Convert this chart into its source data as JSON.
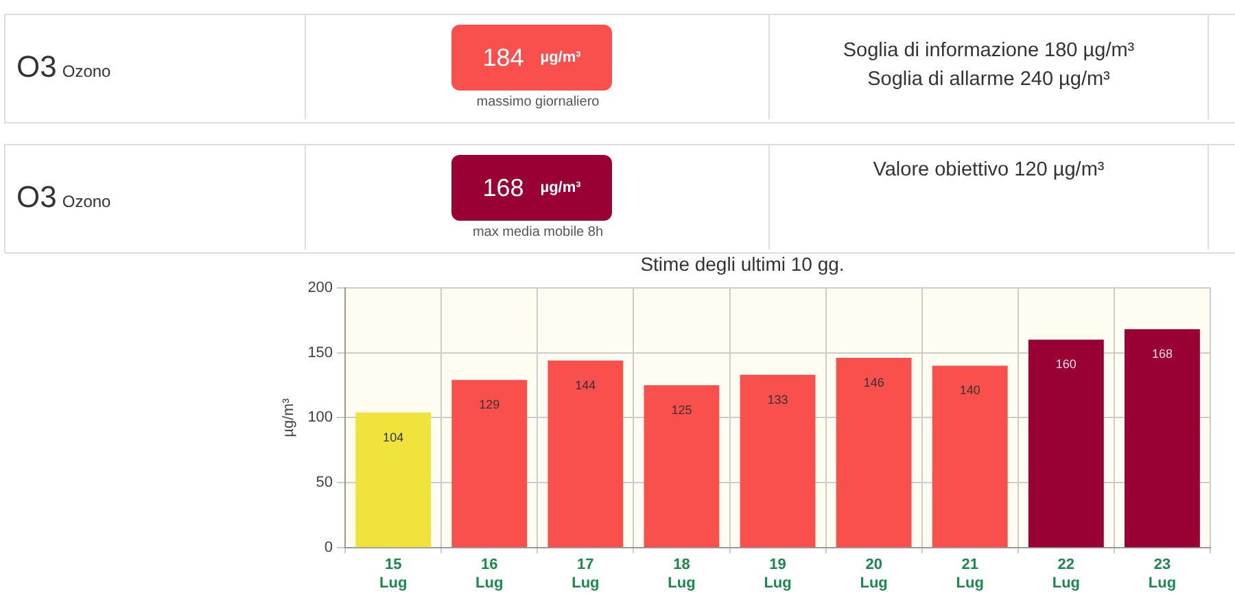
{
  "chart_data": [
    {
      "type": "other",
      "color": "#f9504e",
      "annotations": [
        "O3",
        "Ozono",
        "184",
        "µg/m³",
        "massimo giornaliero",
        "Soglia di informazione 180 µg/m³",
        "Soglia di allarme 240 µg/m³"
      ]
    },
    {
      "type": "other",
      "color": "#990033",
      "annotations": [
        "O3",
        "Ozono",
        "168",
        "µg/m³",
        "max media mobile 8h",
        "Valore obiettivo 120 µg/m³"
      ]
    },
    {
      "type": "bar",
      "title": "Stime degli ultimi 10 gg.",
      "ylabel": "µg/m³",
      "categories": [
        "15 Lug",
        "16 Lug",
        "17 Lug",
        "18 Lug",
        "19 Lug",
        "20 Lug",
        "21 Lug",
        "22 Lug",
        "23 Lug"
      ],
      "values": [
        104,
        129,
        144,
        125,
        133,
        146,
        140,
        160,
        168
      ],
      "colors": [
        "#f0e43c",
        "#f9504e",
        "#f9504e",
        "#f9504e",
        "#f9504e",
        "#f9504e",
        "#f9504e",
        "#990033",
        "#990033"
      ],
      "ylim": [
        0,
        200
      ],
      "yticks": [
        0,
        50,
        100,
        150,
        200
      ],
      "grid": true,
      "data_labels": true,
      "legend": false
    }
  ]
}
